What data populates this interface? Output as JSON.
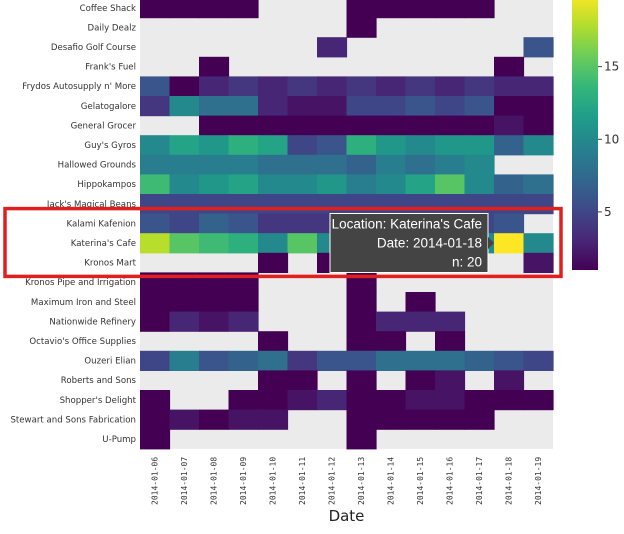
{
  "chart_data": {
    "type": "heatmap",
    "xlabel": "Date",
    "ylabel": "",
    "x": [
      "2014-01-06",
      "2014-01-07",
      "2014-01-08",
      "2014-01-09",
      "2014-01-10",
      "2014-01-11",
      "2014-01-12",
      "2014-01-13",
      "2014-01-14",
      "2014-01-15",
      "2014-01-16",
      "2014-01-17",
      "2014-01-18",
      "2014-01-19"
    ],
    "y": [
      "Coffee Shack",
      "Daily Dealz",
      "Desafio Golf Course",
      "Frank's Fuel",
      "Frydos Autosupply n' More",
      "Gelatogalore",
      "General Grocer",
      "Guy's Gyros",
      "Hallowed Grounds",
      "Hippokampos",
      "Jack's Magical Beans",
      "Kalami Kafenion",
      "Katerina's Cafe",
      "Kronos Mart",
      "Kronos Pipe and Irrigation",
      "Maximum Iron and Steel",
      "Nationwide Refinery",
      "Octavio's Office Supplies",
      "Ouzeri Elian",
      "Roberts and Sons",
      "Shopper's Delight",
      "Stewart and Sons Fabrication",
      "U-Pump"
    ],
    "z": [
      [
        1,
        1,
        1,
        1,
        null,
        null,
        null,
        1,
        1,
        1,
        1,
        1,
        null,
        null
      ],
      [
        null,
        null,
        null,
        null,
        null,
        null,
        null,
        1,
        null,
        null,
        null,
        null,
        null,
        null
      ],
      [
        null,
        null,
        null,
        null,
        null,
        null,
        3,
        null,
        null,
        null,
        null,
        null,
        null,
        6
      ],
      [
        null,
        null,
        1,
        null,
        null,
        null,
        null,
        null,
        null,
        null,
        null,
        null,
        1,
        null
      ],
      [
        6,
        1,
        3,
        4,
        3,
        4,
        3,
        4,
        3,
        4,
        3,
        4,
        3,
        3
      ],
      [
        4,
        10,
        8,
        8,
        3,
        2,
        2,
        5,
        5,
        6,
        5,
        6,
        1,
        1
      ],
      [
        null,
        null,
        1,
        1,
        1,
        1,
        1,
        1,
        1,
        1,
        1,
        1,
        2,
        1
      ],
      [
        10,
        12,
        11,
        13,
        12,
        5,
        6,
        13,
        11,
        10,
        11,
        11,
        7,
        10
      ],
      [
        9,
        9,
        9,
        9,
        8,
        8,
        8,
        7,
        9,
        8,
        9,
        10,
        null,
        null
      ],
      [
        14,
        10,
        11,
        12,
        10,
        10,
        11,
        9,
        10,
        12,
        15,
        10,
        7,
        8
      ],
      [
        5,
        5,
        5,
        5,
        5,
        5,
        5,
        5,
        5,
        5,
        5,
        5,
        5,
        5
      ],
      [
        6,
        5,
        7,
        6,
        4,
        4,
        4,
        4,
        5,
        4,
        5,
        5,
        6,
        null
      ],
      [
        18,
        15,
        14,
        13,
        10,
        15,
        10,
        10,
        10,
        10,
        10,
        10,
        20,
        10
      ],
      [
        null,
        null,
        null,
        null,
        1,
        null,
        1,
        1,
        null,
        1,
        null,
        null,
        null,
        2
      ],
      [
        1,
        1,
        1,
        1,
        null,
        null,
        null,
        1,
        null,
        null,
        null,
        null,
        null,
        null
      ],
      [
        1,
        1,
        1,
        1,
        null,
        null,
        null,
        1,
        null,
        1,
        null,
        null,
        null,
        null
      ],
      [
        1,
        3,
        2,
        3,
        null,
        null,
        null,
        1,
        3,
        3,
        3,
        null,
        null,
        null
      ],
      [
        null,
        null,
        null,
        null,
        1,
        null,
        null,
        1,
        1,
        null,
        1,
        null,
        null,
        null
      ],
      [
        5,
        9,
        6,
        7,
        8,
        4,
        6,
        6,
        8,
        8,
        8,
        7,
        6,
        5
      ],
      [
        null,
        null,
        null,
        null,
        1,
        1,
        null,
        1,
        null,
        1,
        2,
        null,
        2,
        null
      ],
      [
        1,
        null,
        null,
        1,
        1,
        2,
        3,
        1,
        1,
        2,
        2,
        1,
        1,
        1
      ],
      [
        1,
        2,
        1,
        2,
        2,
        null,
        null,
        1,
        1,
        1,
        1,
        1,
        null,
        null
      ],
      [
        1,
        null,
        null,
        null,
        null,
        null,
        null,
        1,
        null,
        null,
        null,
        null,
        null,
        null
      ]
    ],
    "zlim": [
      1,
      20
    ],
    "colorbar_ticks": [
      5,
      10,
      15
    ],
    "colorscale": "viridis",
    "missing_color": "#ebebeb",
    "tooltip": {
      "location_line": "Location: Katerina's Cafe",
      "date_line": "Date: 2014-01-18",
      "n_line": "n: 20",
      "row": "Katerina's Cafe",
      "col": "2014-01-18"
    },
    "highlight_rows": [
      "Kalami Kafenion",
      "Kronos Mart"
    ],
    "highlight_color": "#e0201e"
  }
}
